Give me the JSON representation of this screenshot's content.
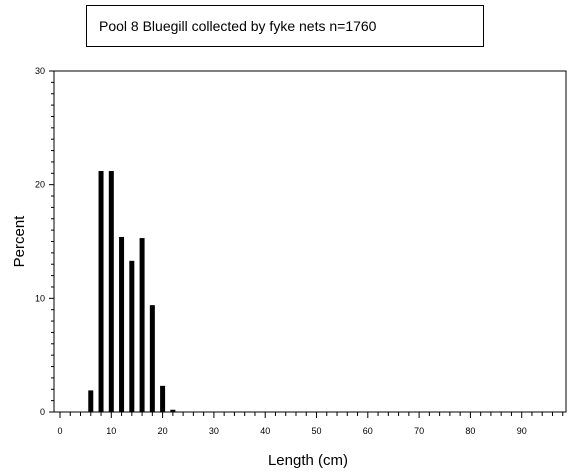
{
  "chart_data": {
    "type": "bar",
    "title": "Pool 8 Bluegill collected by fyke nets   n=1760",
    "xlabel": "Length (cm)",
    "ylabel": "Percent",
    "xlim": [
      0,
      99
    ],
    "ylim": [
      0,
      30
    ],
    "x_ticks": [
      0,
      10,
      20,
      30,
      40,
      50,
      60,
      70,
      80,
      90
    ],
    "y_ticks": [
      0,
      10,
      20,
      30
    ],
    "grid": false,
    "legend": "none",
    "bar_color": "#000000",
    "x": [
      6,
      8,
      10,
      12,
      14,
      16,
      18,
      20,
      22
    ],
    "values": [
      1.9,
      21.2,
      21.2,
      15.4,
      13.3,
      15.3,
      9.4,
      2.3,
      0.2
    ]
  }
}
